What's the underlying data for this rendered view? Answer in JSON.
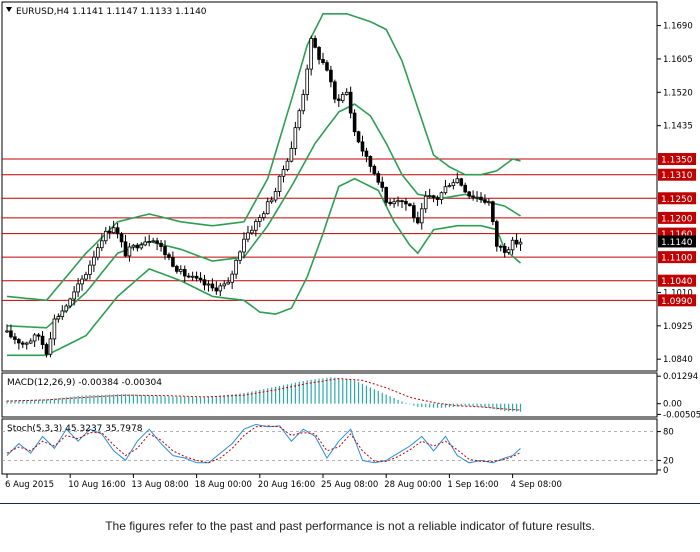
{
  "header": {
    "title": "EURUSD,H4  1.1141 1.1147 1.1133 1.1140",
    "macd_label": "MACD(12,26,9) -0.00384 -0.00304",
    "stoch_label": "Stoch(5,3,3) 45.3237 35.7978"
  },
  "footer": {
    "disclaimer": "The figures refer to the past and past performance is not a reliable indicator of future results."
  },
  "colors": {
    "candle_up": "#ffffff",
    "candle_down": "#000000",
    "bollinger": "#2e9e52",
    "levels": "#c00000",
    "macd_hist": "#2aa8a8",
    "macd_signal": "#c00000",
    "stoch_main": "#2a8fd8",
    "stoch_signal": "#c00000",
    "current_price": "#000000"
  },
  "chart_data": {
    "type": "candlestick",
    "symbol": "EURUSD",
    "timeframe": "H4",
    "ylim": [
      1.0815,
      1.1745
    ],
    "y_ticks": [
      1.169,
      1.1605,
      1.152,
      1.1435,
      1.101,
      1.0925,
      1.084
    ],
    "x_ticks": [
      "6 Aug 2015",
      "10 Aug 16:00",
      "13 Aug 08:00",
      "18 Aug 00:00",
      "20 Aug 16:00",
      "25 Aug 08:00",
      "28 Aug 00:00",
      "1 Sep 16:00",
      "4 Sep 08:00"
    ],
    "x_tick_index": [
      0,
      16,
      32,
      48,
      64,
      80,
      96,
      112,
      128
    ],
    "n_bars": 131,
    "levels": [
      {
        "label": "1.1350",
        "value": 1.135
      },
      {
        "label": "1.1310",
        "value": 1.131
      },
      {
        "label": "1.1250",
        "value": 1.125
      },
      {
        "label": "1.1200",
        "value": 1.12
      },
      {
        "label": "1.1160",
        "value": 1.116
      },
      {
        "label": "1.1100",
        "value": 1.11
      },
      {
        "label": "1.1040",
        "value": 1.104
      },
      {
        "label": "1.0990",
        "value": 1.099
      }
    ],
    "current_price": {
      "label": "1.1140",
      "value": 1.114
    },
    "close_anchors": [
      [
        0,
        1.0905
      ],
      [
        4,
        1.088
      ],
      [
        8,
        1.09
      ],
      [
        10,
        1.086
      ],
      [
        12,
        1.094
      ],
      [
        16,
        1.099
      ],
      [
        20,
        1.106
      ],
      [
        24,
        1.115
      ],
      [
        27,
        1.118
      ],
      [
        30,
        1.111
      ],
      [
        34,
        1.114
      ],
      [
        37,
        1.115
      ],
      [
        40,
        1.111
      ],
      [
        44,
        1.106
      ],
      [
        48,
        1.104
      ],
      [
        52,
        1.102
      ],
      [
        56,
        1.103
      ],
      [
        60,
        1.115
      ],
      [
        64,
        1.12
      ],
      [
        68,
        1.127
      ],
      [
        72,
        1.138
      ],
      [
        75,
        1.152
      ],
      [
        77,
        1.165
      ],
      [
        79,
        1.161
      ],
      [
        81,
        1.158
      ],
      [
        83,
        1.15
      ],
      [
        86,
        1.152
      ],
      [
        88,
        1.142
      ],
      [
        91,
        1.135
      ],
      [
        94,
        1.13
      ],
      [
        96,
        1.124
      ],
      [
        99,
        1.125
      ],
      [
        102,
        1.123
      ],
      [
        104,
        1.118
      ],
      [
        106,
        1.125
      ],
      [
        109,
        1.125
      ],
      [
        112,
        1.129
      ],
      [
        114,
        1.13
      ],
      [
        117,
        1.126
      ],
      [
        120,
        1.125
      ],
      [
        122,
        1.124
      ],
      [
        124,
        1.113
      ],
      [
        126,
        1.112
      ],
      [
        128,
        1.1135
      ],
      [
        130,
        1.114
      ]
    ],
    "bollinger_upper": [
      [
        0,
        1.1
      ],
      [
        10,
        1.099
      ],
      [
        20,
        1.111
      ],
      [
        28,
        1.119
      ],
      [
        36,
        1.121
      ],
      [
        44,
        1.119
      ],
      [
        52,
        1.118
      ],
      [
        60,
        1.119
      ],
      [
        66,
        1.13
      ],
      [
        72,
        1.15
      ],
      [
        76,
        1.164
      ],
      [
        80,
        1.172
      ],
      [
        86,
        1.172
      ],
      [
        92,
        1.17
      ],
      [
        96,
        1.168
      ],
      [
        100,
        1.16
      ],
      [
        104,
        1.148
      ],
      [
        108,
        1.136
      ],
      [
        112,
        1.133
      ],
      [
        116,
        1.131
      ],
      [
        120,
        1.131
      ],
      [
        124,
        1.132
      ],
      [
        128,
        1.135
      ],
      [
        130,
        1.1345
      ]
    ],
    "bollinger_middle": [
      [
        0,
        1.0925
      ],
      [
        10,
        1.092
      ],
      [
        20,
        1.101
      ],
      [
        28,
        1.111
      ],
      [
        36,
        1.114
      ],
      [
        44,
        1.112
      ],
      [
        52,
        1.109
      ],
      [
        60,
        1.11
      ],
      [
        66,
        1.118
      ],
      [
        72,
        1.128
      ],
      [
        78,
        1.139
      ],
      [
        84,
        1.147
      ],
      [
        88,
        1.149
      ],
      [
        92,
        1.146
      ],
      [
        96,
        1.139
      ],
      [
        100,
        1.131
      ],
      [
        104,
        1.126
      ],
      [
        110,
        1.125
      ],
      [
        116,
        1.126
      ],
      [
        122,
        1.124
      ],
      [
        126,
        1.123
      ],
      [
        130,
        1.1205
      ]
    ],
    "bollinger_lower": [
      [
        0,
        1.085
      ],
      [
        10,
        1.085
      ],
      [
        20,
        1.09
      ],
      [
        28,
        1.1
      ],
      [
        36,
        1.107
      ],
      [
        44,
        1.104
      ],
      [
        52,
        1.1
      ],
      [
        60,
        1.099
      ],
      [
        64,
        1.096
      ],
      [
        68,
        1.0955
      ],
      [
        72,
        1.097
      ],
      [
        76,
        1.105
      ],
      [
        80,
        1.116
      ],
      [
        84,
        1.128
      ],
      [
        88,
        1.13
      ],
      [
        94,
        1.127
      ],
      [
        98,
        1.119
      ],
      [
        102,
        1.113
      ],
      [
        104,
        1.111
      ],
      [
        108,
        1.117
      ],
      [
        114,
        1.118
      ],
      [
        120,
        1.118
      ],
      [
        124,
        1.117
      ],
      [
        126,
        1.112
      ],
      [
        130,
        1.1085
      ]
    ],
    "macd": {
      "ylim": [
        -0.0058,
        0.0135
      ],
      "y_ticks": [
        0.01294,
        0.0,
        -0.00505
      ],
      "hist_anchors": [
        [
          0,
          0.0015
        ],
        [
          10,
          0.002
        ],
        [
          20,
          0.004
        ],
        [
          30,
          0.0045
        ],
        [
          40,
          0.0035
        ],
        [
          50,
          0.003
        ],
        [
          60,
          0.005
        ],
        [
          68,
          0.008
        ],
        [
          76,
          0.011
        ],
        [
          82,
          0.0125
        ],
        [
          88,
          0.011
        ],
        [
          94,
          0.006
        ],
        [
          100,
          0.001
        ],
        [
          104,
          -0.0015
        ],
        [
          110,
          -0.002
        ],
        [
          116,
          -0.001
        ],
        [
          122,
          -0.002
        ],
        [
          126,
          -0.0035
        ],
        [
          130,
          -0.0038
        ]
      ],
      "signal_anchors": [
        [
          0,
          0.0012
        ],
        [
          10,
          0.0018
        ],
        [
          20,
          0.003
        ],
        [
          30,
          0.004
        ],
        [
          40,
          0.0038
        ],
        [
          50,
          0.0032
        ],
        [
          60,
          0.004
        ],
        [
          68,
          0.0065
        ],
        [
          76,
          0.0095
        ],
        [
          84,
          0.0118
        ],
        [
          90,
          0.011
        ],
        [
          96,
          0.0075
        ],
        [
          102,
          0.003
        ],
        [
          108,
          0.0005
        ],
        [
          114,
          -0.001
        ],
        [
          120,
          -0.0015
        ],
        [
          126,
          -0.0025
        ],
        [
          130,
          -0.003
        ]
      ]
    },
    "stochastic": {
      "ylim": [
        0,
        100
      ],
      "y_ticks": [
        80,
        20,
        0
      ],
      "main_anchors": [
        [
          0,
          30
        ],
        [
          3,
          55
        ],
        [
          6,
          35
        ],
        [
          9,
          70
        ],
        [
          12,
          45
        ],
        [
          15,
          85
        ],
        [
          18,
          60
        ],
        [
          21,
          85
        ],
        [
          24,
          75
        ],
        [
          27,
          40
        ],
        [
          30,
          20
        ],
        [
          33,
          60
        ],
        [
          36,
          85
        ],
        [
          39,
          55
        ],
        [
          42,
          30
        ],
        [
          45,
          25
        ],
        [
          48,
          15
        ],
        [
          51,
          15
        ],
        [
          54,
          35
        ],
        [
          57,
          55
        ],
        [
          60,
          85
        ],
        [
          63,
          95
        ],
        [
          66,
          90
        ],
        [
          69,
          92
        ],
        [
          72,
          60
        ],
        [
          75,
          85
        ],
        [
          78,
          70
        ],
        [
          81,
          25
        ],
        [
          84,
          60
        ],
        [
          87,
          85
        ],
        [
          90,
          20
        ],
        [
          93,
          15
        ],
        [
          96,
          20
        ],
        [
          99,
          35
        ],
        [
          102,
          50
        ],
        [
          105,
          70
        ],
        [
          108,
          40
        ],
        [
          111,
          70
        ],
        [
          114,
          30
        ],
        [
          117,
          15
        ],
        [
          120,
          20
        ],
        [
          123,
          15
        ],
        [
          126,
          25
        ],
        [
          128,
          30
        ],
        [
          130,
          45
        ]
      ],
      "signal_anchors": [
        [
          0,
          35
        ],
        [
          3,
          48
        ],
        [
          6,
          40
        ],
        [
          9,
          60
        ],
        [
          12,
          50
        ],
        [
          15,
          72
        ],
        [
          18,
          65
        ],
        [
          21,
          78
        ],
        [
          24,
          78
        ],
        [
          27,
          52
        ],
        [
          30,
          30
        ],
        [
          33,
          45
        ],
        [
          36,
          75
        ],
        [
          39,
          62
        ],
        [
          42,
          40
        ],
        [
          45,
          28
        ],
        [
          48,
          20
        ],
        [
          51,
          15
        ],
        [
          54,
          25
        ],
        [
          57,
          45
        ],
        [
          60,
          72
        ],
        [
          63,
          90
        ],
        [
          66,
          92
        ],
        [
          69,
          90
        ],
        [
          72,
          72
        ],
        [
          75,
          78
        ],
        [
          78,
          75
        ],
        [
          81,
          40
        ],
        [
          84,
          48
        ],
        [
          87,
          75
        ],
        [
          90,
          40
        ],
        [
          93,
          18
        ],
        [
          96,
          18
        ],
        [
          99,
          28
        ],
        [
          102,
          42
        ],
        [
          105,
          60
        ],
        [
          108,
          50
        ],
        [
          111,
          60
        ],
        [
          114,
          42
        ],
        [
          117,
          22
        ],
        [
          120,
          18
        ],
        [
          123,
          18
        ],
        [
          126,
          22
        ],
        [
          128,
          28
        ],
        [
          130,
          36
        ]
      ]
    }
  }
}
